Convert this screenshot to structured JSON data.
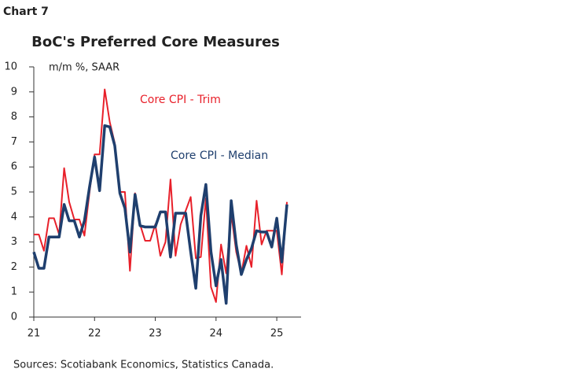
{
  "chart_data": {
    "type": "line",
    "label": "Chart 7",
    "title": "BoC's Preferred Core Measures",
    "y_label": "m/m %, SAAR",
    "source": "Sources: Scotiabank Economics, Statistics Canada.",
    "x": [
      21,
      21.083,
      21.167,
      21.25,
      21.333,
      21.417,
      21.5,
      21.583,
      21.667,
      21.75,
      21.833,
      21.917,
      22,
      22.083,
      22.167,
      22.25,
      22.333,
      22.417,
      22.5,
      22.583,
      22.667,
      22.75,
      22.833,
      22.917,
      23,
      23.083,
      23.167,
      23.25,
      23.333,
      23.417,
      23.5,
      23.583,
      23.667,
      23.75,
      23.833,
      23.917,
      24,
      24.083,
      24.167,
      24.25,
      24.333,
      24.417,
      24.5,
      24.583,
      24.667,
      24.75,
      24.833,
      24.917,
      25,
      25.083,
      25.167
    ],
    "series": [
      {
        "name": "Core CPI - Trim",
        "color": "#e8202a",
        "values": [
          3.3,
          3.3,
          2.65,
          3.95,
          3.95,
          3.3,
          5.95,
          4.6,
          3.9,
          3.9,
          3.25,
          5.0,
          6.5,
          6.5,
          9.1,
          7.8,
          6.95,
          5.0,
          5.0,
          1.85,
          4.95,
          3.7,
          3.05,
          3.05,
          3.7,
          2.45,
          3.0,
          5.5,
          2.45,
          3.7,
          4.25,
          4.8,
          2.35,
          2.4,
          4.75,
          1.2,
          0.6,
          2.9,
          1.75,
          4.15,
          2.6,
          1.75,
          2.85,
          2.0,
          4.65,
          2.9,
          3.45,
          3.45,
          3.45,
          1.7,
          4.6
        ]
      },
      {
        "name": "Core CPI - Median",
        "color": "#1f3f6e",
        "values": [
          2.6,
          1.95,
          1.95,
          3.2,
          3.2,
          3.2,
          4.5,
          3.85,
          3.85,
          3.2,
          3.85,
          5.2,
          6.4,
          5.05,
          7.65,
          7.6,
          6.85,
          4.95,
          4.35,
          2.6,
          4.9,
          3.65,
          3.6,
          3.6,
          3.6,
          4.2,
          4.2,
          2.4,
          4.15,
          4.15,
          4.15,
          2.6,
          1.15,
          4.05,
          5.3,
          2.6,
          1.25,
          2.3,
          0.55,
          4.65,
          2.9,
          1.7,
          2.3,
          2.75,
          3.45,
          3.4,
          3.4,
          2.8,
          3.95,
          2.2,
          4.5
        ]
      }
    ],
    "xlim": [
      21,
      25.4
    ],
    "xticks": [
      21,
      22,
      23,
      24,
      25
    ],
    "ylim": [
      0,
      10
    ],
    "yticks": [
      0,
      1,
      2,
      3,
      4,
      5,
      6,
      7,
      8,
      9,
      10
    ],
    "grid": false
  }
}
